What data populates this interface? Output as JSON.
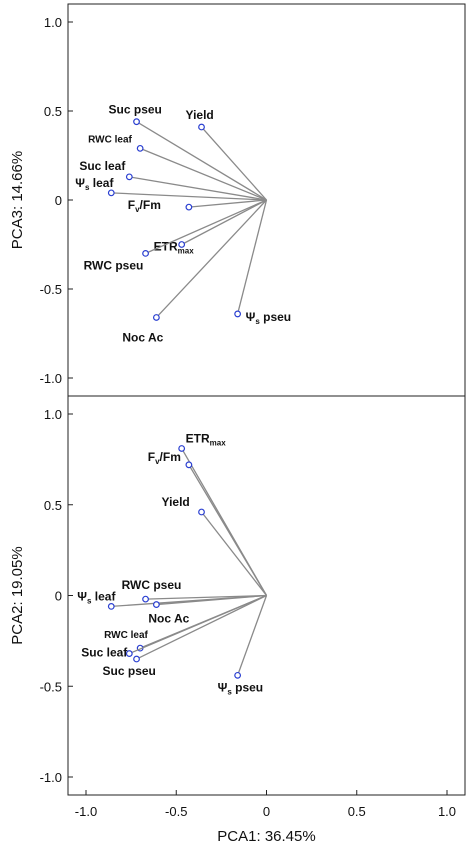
{
  "chart_data": [
    {
      "type": "scatter",
      "panel": "top",
      "ylabel": "PCA3: 14.66%",
      "xlim": [
        -1.0,
        1.0
      ],
      "ylim": [
        -1.0,
        1.0
      ],
      "yticks": [
        "1.0",
        "0.5",
        "0",
        "-0.5",
        "-1.0"
      ],
      "origin": [
        0,
        0
      ],
      "points": [
        {
          "base": "Suc pseu",
          "sub": "",
          "tail": "",
          "x": -0.72,
          "y": 0.44
        },
        {
          "base": "Yield",
          "sub": "",
          "tail": "",
          "x": -0.36,
          "y": 0.41
        },
        {
          "base": "RWC leaf",
          "sub": "",
          "tail": "",
          "x": -0.7,
          "y": 0.29
        },
        {
          "base": "Suc leaf",
          "sub": "",
          "tail": "",
          "x": -0.76,
          "y": 0.13
        },
        {
          "base": "Ψ",
          "sub": "s",
          "tail": " leaf",
          "x": -0.86,
          "y": 0.04
        },
        {
          "base": "F",
          "sub": "v",
          "tail": "/Fm",
          "x": -0.43,
          "y": -0.04
        },
        {
          "base": "ETR",
          "sub": "max",
          "tail": "",
          "x": -0.47,
          "y": -0.25
        },
        {
          "base": "RWC pseu",
          "sub": "",
          "tail": "",
          "x": -0.67,
          "y": -0.3
        },
        {
          "base": "Noc Ac",
          "sub": "",
          "tail": "",
          "x": -0.61,
          "y": -0.66
        },
        {
          "base": "Ψ",
          "sub": "s",
          "tail": " pseu",
          "x": -0.16,
          "y": -0.64
        }
      ]
    },
    {
      "type": "scatter",
      "panel": "bottom",
      "xlabel": "PCA1: 36.45%",
      "ylabel": "PCA2: 19.05%",
      "xlim": [
        -1.0,
        1.0
      ],
      "ylim": [
        -1.0,
        1.0
      ],
      "xticks": [
        "-1.0",
        "-0.5",
        "0",
        "0.5",
        "1.0"
      ],
      "yticks": [
        "1.0",
        "0.5",
        "0",
        "-0.5",
        "-1.0"
      ],
      "origin": [
        0,
        0
      ],
      "points": [
        {
          "base": "ETR",
          "sub": "max",
          "tail": "",
          "x": -0.47,
          "y": 0.81
        },
        {
          "base": "F",
          "sub": "v",
          "tail": "/Fm",
          "x": -0.43,
          "y": 0.72
        },
        {
          "base": "Yield",
          "sub": "",
          "tail": "",
          "x": -0.36,
          "y": 0.46
        },
        {
          "base": "RWC pseu",
          "sub": "",
          "tail": "",
          "x": -0.67,
          "y": -0.02
        },
        {
          "base": "Ψ",
          "sub": "s",
          "tail": " leaf",
          "x": -0.86,
          "y": -0.06
        },
        {
          "base": "Noc Ac",
          "sub": "",
          "tail": "",
          "x": -0.61,
          "y": -0.05
        },
        {
          "base": "RWC leaf",
          "sub": "",
          "tail": "",
          "x": -0.7,
          "y": -0.29
        },
        {
          "base": "Suc leaf",
          "sub": "",
          "tail": "",
          "x": -0.76,
          "y": -0.32
        },
        {
          "base": "Suc pseu",
          "sub": "",
          "tail": "",
          "x": -0.72,
          "y": -0.35
        },
        {
          "base": "Ψ",
          "sub": "s",
          "tail": " pseu",
          "x": -0.16,
          "y": -0.44
        }
      ]
    }
  ]
}
